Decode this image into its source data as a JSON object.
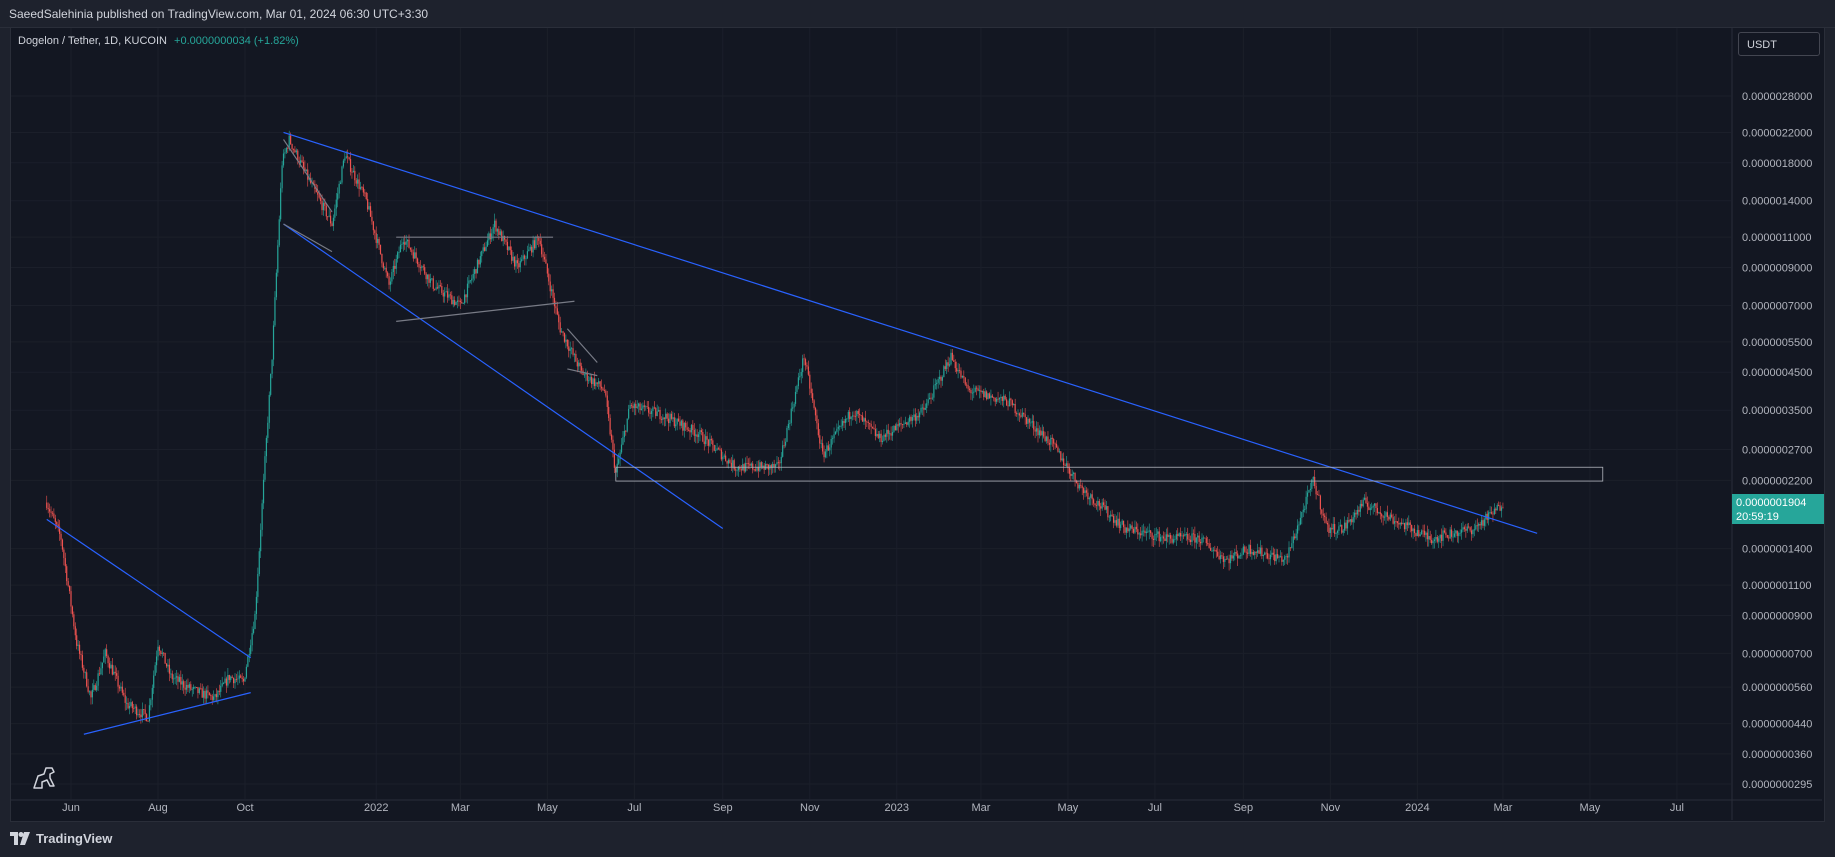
{
  "header": {
    "published": "SaeedSalehinia published on TradingView.com, Mar 01, 2024 06:30 UTC+3:30"
  },
  "legend": {
    "symbol": "Dogelon / Tether, 1D, KUCOIN",
    "change": "+0.0000000034 (+1.82%)"
  },
  "currency_button": {
    "label": "USDT"
  },
  "footer": {
    "brand": "TradingView"
  },
  "colors": {
    "background": "#131722",
    "up": "#26a69a",
    "down": "#ef5350",
    "trendline": "#2962ff",
    "box": "#b2b5be",
    "price_label": "#26a69a"
  },
  "icons": [
    "tradingview-logo-icon",
    "dinosaur-icon"
  ],
  "chart_data": {
    "type": "candlestick",
    "scale": "log",
    "y_ticks": [
      "0.0000028000",
      "0.0000022000",
      "0.0000018000",
      "0.0000014000",
      "0.0000011000",
      "0.0000009000",
      "0.0000007000",
      "0.0000005500",
      "0.0000004500",
      "0.0000003500",
      "0.0000002700",
      "0.0000002200",
      "0.0000001400",
      "0.0000001100",
      "0.0000000900",
      "0.0000000700",
      "0.0000000560",
      "0.0000000440",
      "0.0000000360",
      "0.0000000295"
    ],
    "x_ticks": [
      "Jun",
      "Aug",
      "Oct",
      "2022",
      "Mar",
      "May",
      "Jul",
      "Sep",
      "Nov",
      "2023",
      "Mar",
      "May",
      "Jul",
      "Sep",
      "Nov",
      "2024",
      "Mar",
      "May",
      "Jul"
    ],
    "x_range": [
      "2021-05-15",
      "2024-07-31"
    ],
    "last_price": {
      "value": "0.0000001904",
      "countdown": "20:59:19"
    },
    "price_path": [
      [
        "2021-05-15",
        1.9e-07
      ],
      [
        "2021-05-25",
        1.5e-07
      ],
      [
        "2021-06-05",
        7.5e-08
      ],
      [
        "2021-06-15",
        5.2e-08
      ],
      [
        "2021-06-25",
        7e-08
      ],
      [
        "2021-07-10",
        5e-08
      ],
      [
        "2021-07-25",
        4.6e-08
      ],
      [
        "2021-08-01",
        7.5e-08
      ],
      [
        "2021-08-10",
        6e-08
      ],
      [
        "2021-08-25",
        5.5e-08
      ],
      [
        "2021-09-10",
        5.2e-08
      ],
      [
        "2021-09-20",
        6e-08
      ],
      [
        "2021-09-30",
        5.8e-08
      ],
      [
        "2021-10-08",
        9e-08
      ],
      [
        "2021-10-15",
        2.5e-07
      ],
      [
        "2021-10-20",
        5e-07
      ],
      [
        "2021-10-27",
        1.8e-06
      ],
      [
        "2021-11-01",
        2.1e-06
      ],
      [
        "2021-11-15",
        1.6e-06
      ],
      [
        "2021-12-01",
        1.2e-06
      ],
      [
        "2021-12-10",
        1.9e-06
      ],
      [
        "2021-12-25",
        1.4e-06
      ],
      [
        "2022-01-10",
        8e-07
      ],
      [
        "2022-01-20",
        1.1e-06
      ],
      [
        "2022-02-10",
        8e-07
      ],
      [
        "2022-03-01",
        7e-07
      ],
      [
        "2022-03-25",
        1.2e-06
      ],
      [
        "2022-04-10",
        9e-07
      ],
      [
        "2022-04-25",
        1.1e-06
      ],
      [
        "2022-05-10",
        6e-07
      ],
      [
        "2022-05-25",
        4.5e-07
      ],
      [
        "2022-06-10",
        4e-07
      ],
      [
        "2022-06-18",
        2.3e-07
      ],
      [
        "2022-06-28",
        3.6e-07
      ],
      [
        "2022-07-20",
        3.4e-07
      ],
      [
        "2022-08-15",
        3e-07
      ],
      [
        "2022-09-10",
        2.4e-07
      ],
      [
        "2022-10-10",
        2.4e-07
      ],
      [
        "2022-10-28",
        5e-07
      ],
      [
        "2022-11-10",
        2.6e-07
      ],
      [
        "2022-12-01",
        3.5e-07
      ],
      [
        "2022-12-20",
        2.9e-07
      ],
      [
        "2023-01-20",
        3.5e-07
      ],
      [
        "2023-02-08",
        5e-07
      ],
      [
        "2023-02-20",
        4e-07
      ],
      [
        "2023-03-20",
        3.7e-07
      ],
      [
        "2023-04-20",
        2.8e-07
      ],
      [
        "2023-05-10",
        2.1e-07
      ],
      [
        "2023-06-10",
        1.6e-07
      ],
      [
        "2023-07-10",
        1.5e-07
      ],
      [
        "2023-08-01",
        1.5e-07
      ],
      [
        "2023-08-20",
        1.3e-07
      ],
      [
        "2023-09-05",
        1.4e-07
      ],
      [
        "2023-10-01",
        1.3e-07
      ],
      [
        "2023-10-20",
        2.2e-07
      ],
      [
        "2023-10-30",
        1.6e-07
      ],
      [
        "2023-11-10",
        1.6e-07
      ],
      [
        "2023-11-25",
        1.9e-07
      ],
      [
        "2023-12-15",
        1.7e-07
      ],
      [
        "2024-01-10",
        1.5e-07
      ],
      [
        "2024-02-10",
        1.6e-07
      ],
      [
        "2024-02-28",
        1.85e-07
      ],
      [
        "2024-03-01",
        1.9e-07
      ]
    ]
  }
}
